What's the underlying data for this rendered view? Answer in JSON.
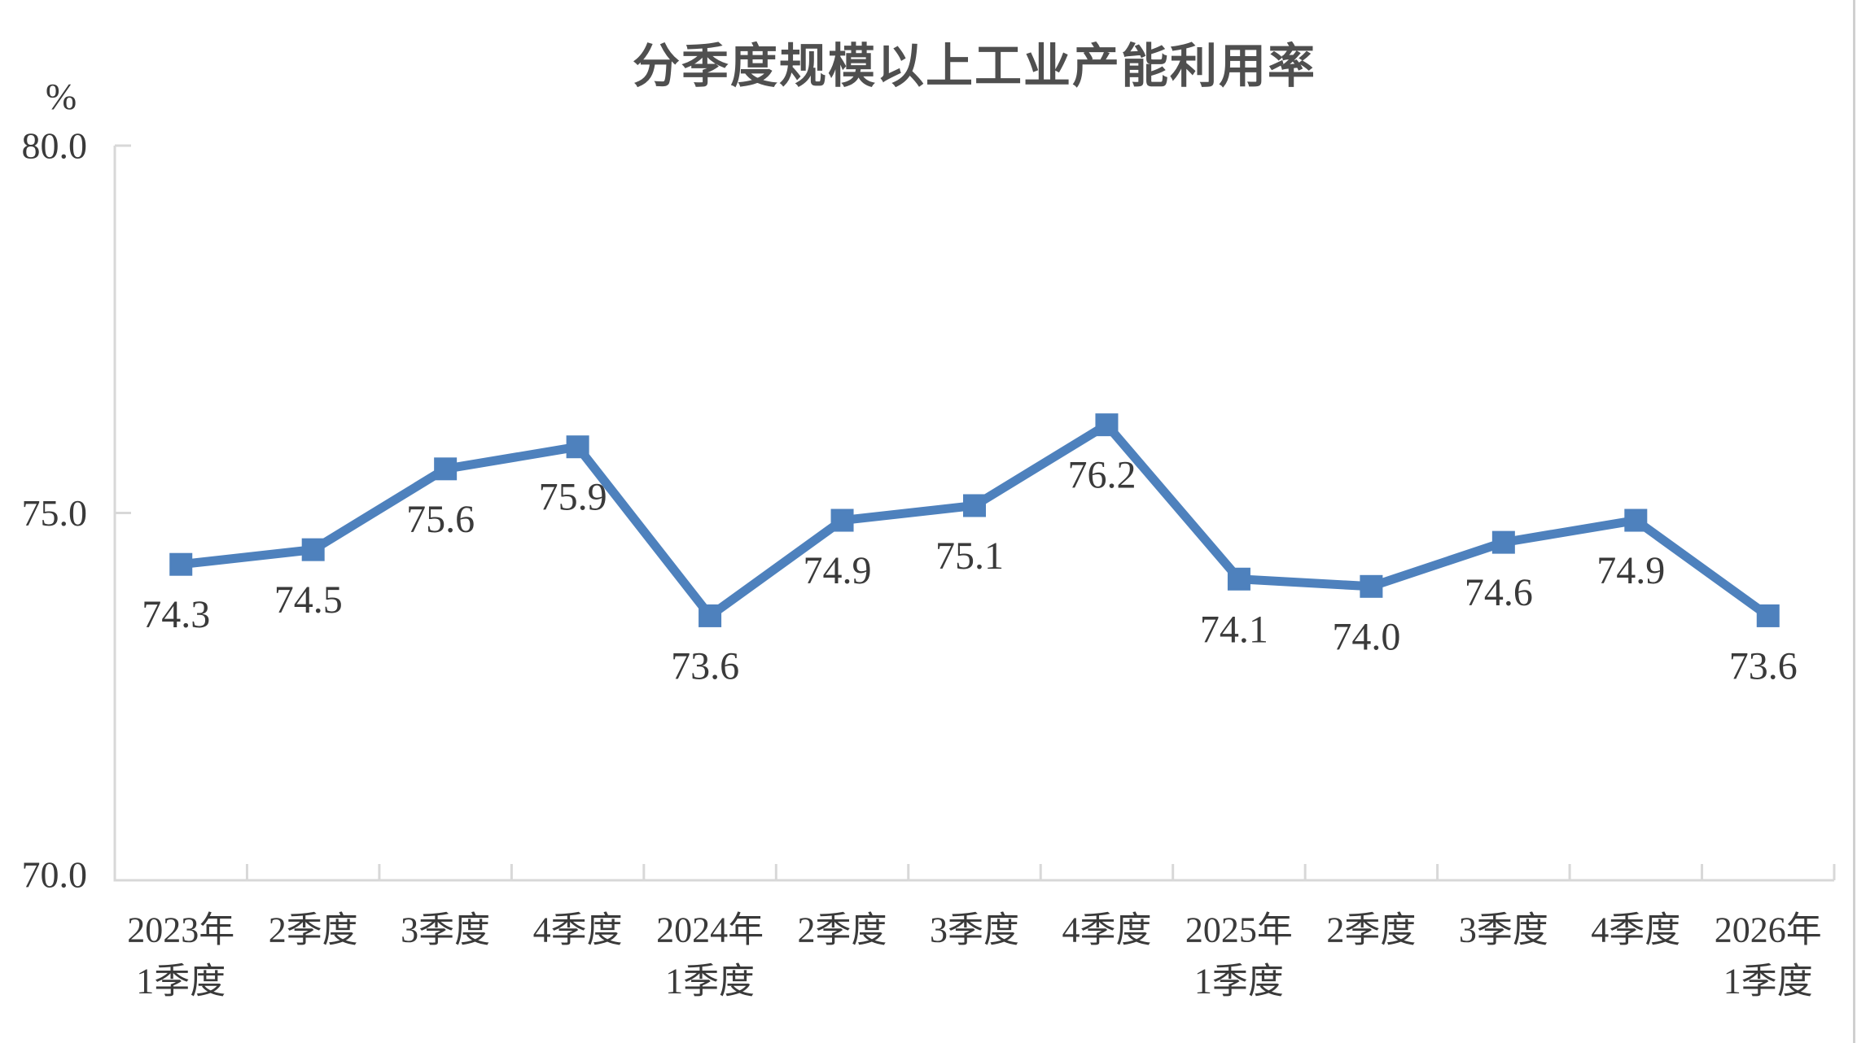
{
  "chart_data": {
    "type": "line",
    "title": "分季度规模以上工业产能利用率",
    "unit_label": "%",
    "categories": [
      [
        "2023年",
        "1季度"
      ],
      [
        "2季度"
      ],
      [
        "3季度"
      ],
      [
        "4季度"
      ],
      [
        "2024年",
        "1季度"
      ],
      [
        "2季度"
      ],
      [
        "3季度"
      ],
      [
        "4季度"
      ],
      [
        "2025年",
        "1季度"
      ],
      [
        "2季度"
      ],
      [
        "3季度"
      ],
      [
        "4季度"
      ],
      [
        "2026年",
        "1季度"
      ]
    ],
    "series": [
      {
        "values": [
          74.3,
          74.5,
          75.6,
          75.9,
          73.6,
          74.9,
          75.1,
          76.2,
          74.1,
          74.0,
          74.6,
          74.9,
          73.6
        ],
        "point_labels": [
          "74.3",
          "74.5",
          "75.6",
          "75.9",
          "73.6",
          "74.9",
          "75.1",
          "76.2",
          "74.1",
          "74.0",
          "74.6",
          "74.9",
          "73.6"
        ]
      }
    ],
    "ylim": [
      70,
      80
    ],
    "yticks": [
      {
        "v": 80,
        "label": "80.0"
      },
      {
        "v": 75,
        "label": "75.0"
      },
      {
        "v": 70,
        "label": "70.0"
      }
    ],
    "grid": false,
    "legend": "none",
    "marker": "square",
    "colors": {
      "line": "#4E81BD",
      "axis": "#D8D8D8",
      "tick_text": "#3A3A3A",
      "data_label": "#3A3A3A",
      "title": "#4F4F4F",
      "page_edge": "#D0D0D0"
    }
  }
}
